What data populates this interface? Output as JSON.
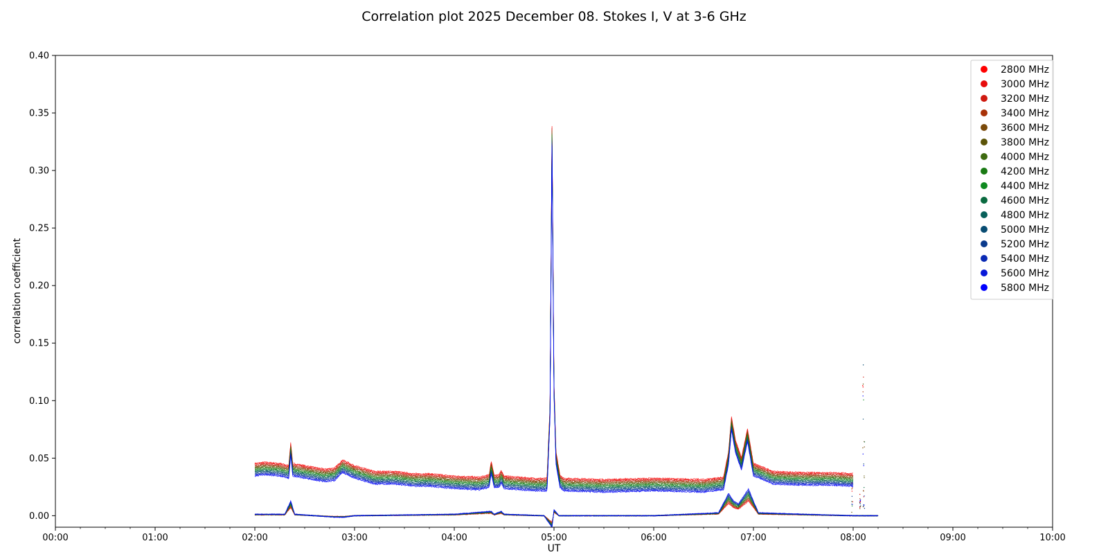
{
  "chart_data": {
    "type": "scatter",
    "title": "Correlation plot 2025 December 08. Stokes I, V at 3-6 GHz",
    "xlabel": "UT",
    "ylabel": "correlation coefficient",
    "xlim": [
      0,
      10
    ],
    "ylim": [
      -0.01,
      0.4
    ],
    "x_ticks": [
      0,
      1,
      2,
      3,
      4,
      5,
      6,
      7,
      8,
      9,
      10
    ],
    "x_tick_labels": [
      "00:00",
      "01:00",
      "02:00",
      "03:00",
      "04:00",
      "05:00",
      "06:00",
      "07:00",
      "08:00",
      "09:00",
      "10:00"
    ],
    "x_minor_step": 0.25,
    "y_ticks": [
      0.0,
      0.05,
      0.1,
      0.15,
      0.2,
      0.25,
      0.3,
      0.35,
      0.4
    ],
    "y_tick_labels": [
      "0.00",
      "0.05",
      "0.10",
      "0.15",
      "0.20",
      "0.25",
      "0.30",
      "0.35",
      "0.40"
    ],
    "grid": false,
    "legend_position": "top-right",
    "series": [
      {
        "name": "2800 MHz",
        "color": "#ff0000"
      },
      {
        "name": "3000 MHz",
        "color": "#e70c0c"
      },
      {
        "name": "3200 MHz",
        "color": "#cf1a10"
      },
      {
        "name": "3400 MHz",
        "color": "#a83208"
      },
      {
        "name": "3600 MHz",
        "color": "#7a4a0a"
      },
      {
        "name": "3800 MHz",
        "color": "#5c5408"
      },
      {
        "name": "4000 MHz",
        "color": "#3e6a10"
      },
      {
        "name": "4200 MHz",
        "color": "#1a7a14"
      },
      {
        "name": "4400 MHz",
        "color": "#0f8a20"
      },
      {
        "name": "4600 MHz",
        "color": "#0a6a40"
      },
      {
        "name": "4800 MHz",
        "color": "#07605a"
      },
      {
        "name": "5000 MHz",
        "color": "#084c72"
      },
      {
        "name": "5200 MHz",
        "color": "#0a3a8c"
      },
      {
        "name": "5400 MHz",
        "color": "#0a2ab4"
      },
      {
        "name": "5600 MHz",
        "color": "#0818d8"
      },
      {
        "name": "5800 MHz",
        "color": "#0000ff"
      }
    ],
    "stokes_i_profile": {
      "description_units": "x in hours UT, y in correlation coefficient (mean over band)",
      "x": [
        2.0,
        2.1,
        2.25,
        2.34,
        2.36,
        2.38,
        2.5,
        2.7,
        2.8,
        2.88,
        3.0,
        3.2,
        3.4,
        3.6,
        3.75,
        4.0,
        4.25,
        4.35,
        4.37,
        4.4,
        4.45,
        4.47,
        4.5,
        4.8,
        4.93,
        4.96,
        4.98,
        5.0,
        5.02,
        5.06,
        5.1,
        5.5,
        6.0,
        6.5,
        6.7,
        6.75,
        6.78,
        6.82,
        6.88,
        6.94,
        7.0,
        7.2,
        7.5,
        7.8,
        8.0
      ],
      "y": [
        0.04,
        0.041,
        0.04,
        0.038,
        0.058,
        0.04,
        0.038,
        0.035,
        0.036,
        0.043,
        0.038,
        0.033,
        0.033,
        0.031,
        0.031,
        0.029,
        0.028,
        0.03,
        0.042,
        0.03,
        0.03,
        0.034,
        0.029,
        0.027,
        0.027,
        0.09,
        0.33,
        0.11,
        0.05,
        0.03,
        0.027,
        0.026,
        0.027,
        0.026,
        0.028,
        0.05,
        0.08,
        0.06,
        0.045,
        0.07,
        0.04,
        0.033,
        0.032,
        0.032,
        0.031
      ],
      "band_offset_low": 0.0055,
      "band_offset_high": 0.0055
    },
    "stokes_v_profile": {
      "x": [
        2.0,
        2.3,
        2.36,
        2.4,
        2.8,
        2.9,
        3.0,
        4.0,
        4.37,
        4.4,
        4.47,
        4.5,
        4.9,
        4.98,
        5.0,
        5.05,
        5.2,
        6.0,
        6.65,
        6.75,
        6.8,
        6.85,
        6.95,
        7.05,
        7.5,
        8.0,
        8.25
      ],
      "y": [
        0.001,
        0.001,
        0.01,
        0.001,
        -0.001,
        -0.001,
        0.0,
        0.001,
        0.003,
        0.001,
        0.003,
        0.001,
        0.0,
        -0.008,
        0.004,
        0.0,
        0.0,
        0.0,
        0.002,
        0.015,
        0.01,
        0.008,
        0.018,
        0.002,
        0.001,
        0.0,
        0.0
      ]
    },
    "annotations": {
      "late_spikes_x": [
        7.99,
        8.07,
        8.1,
        8.11
      ],
      "late_spikes_y": [
        0.03,
        0.02,
        0.145,
        0.065
      ]
    }
  }
}
